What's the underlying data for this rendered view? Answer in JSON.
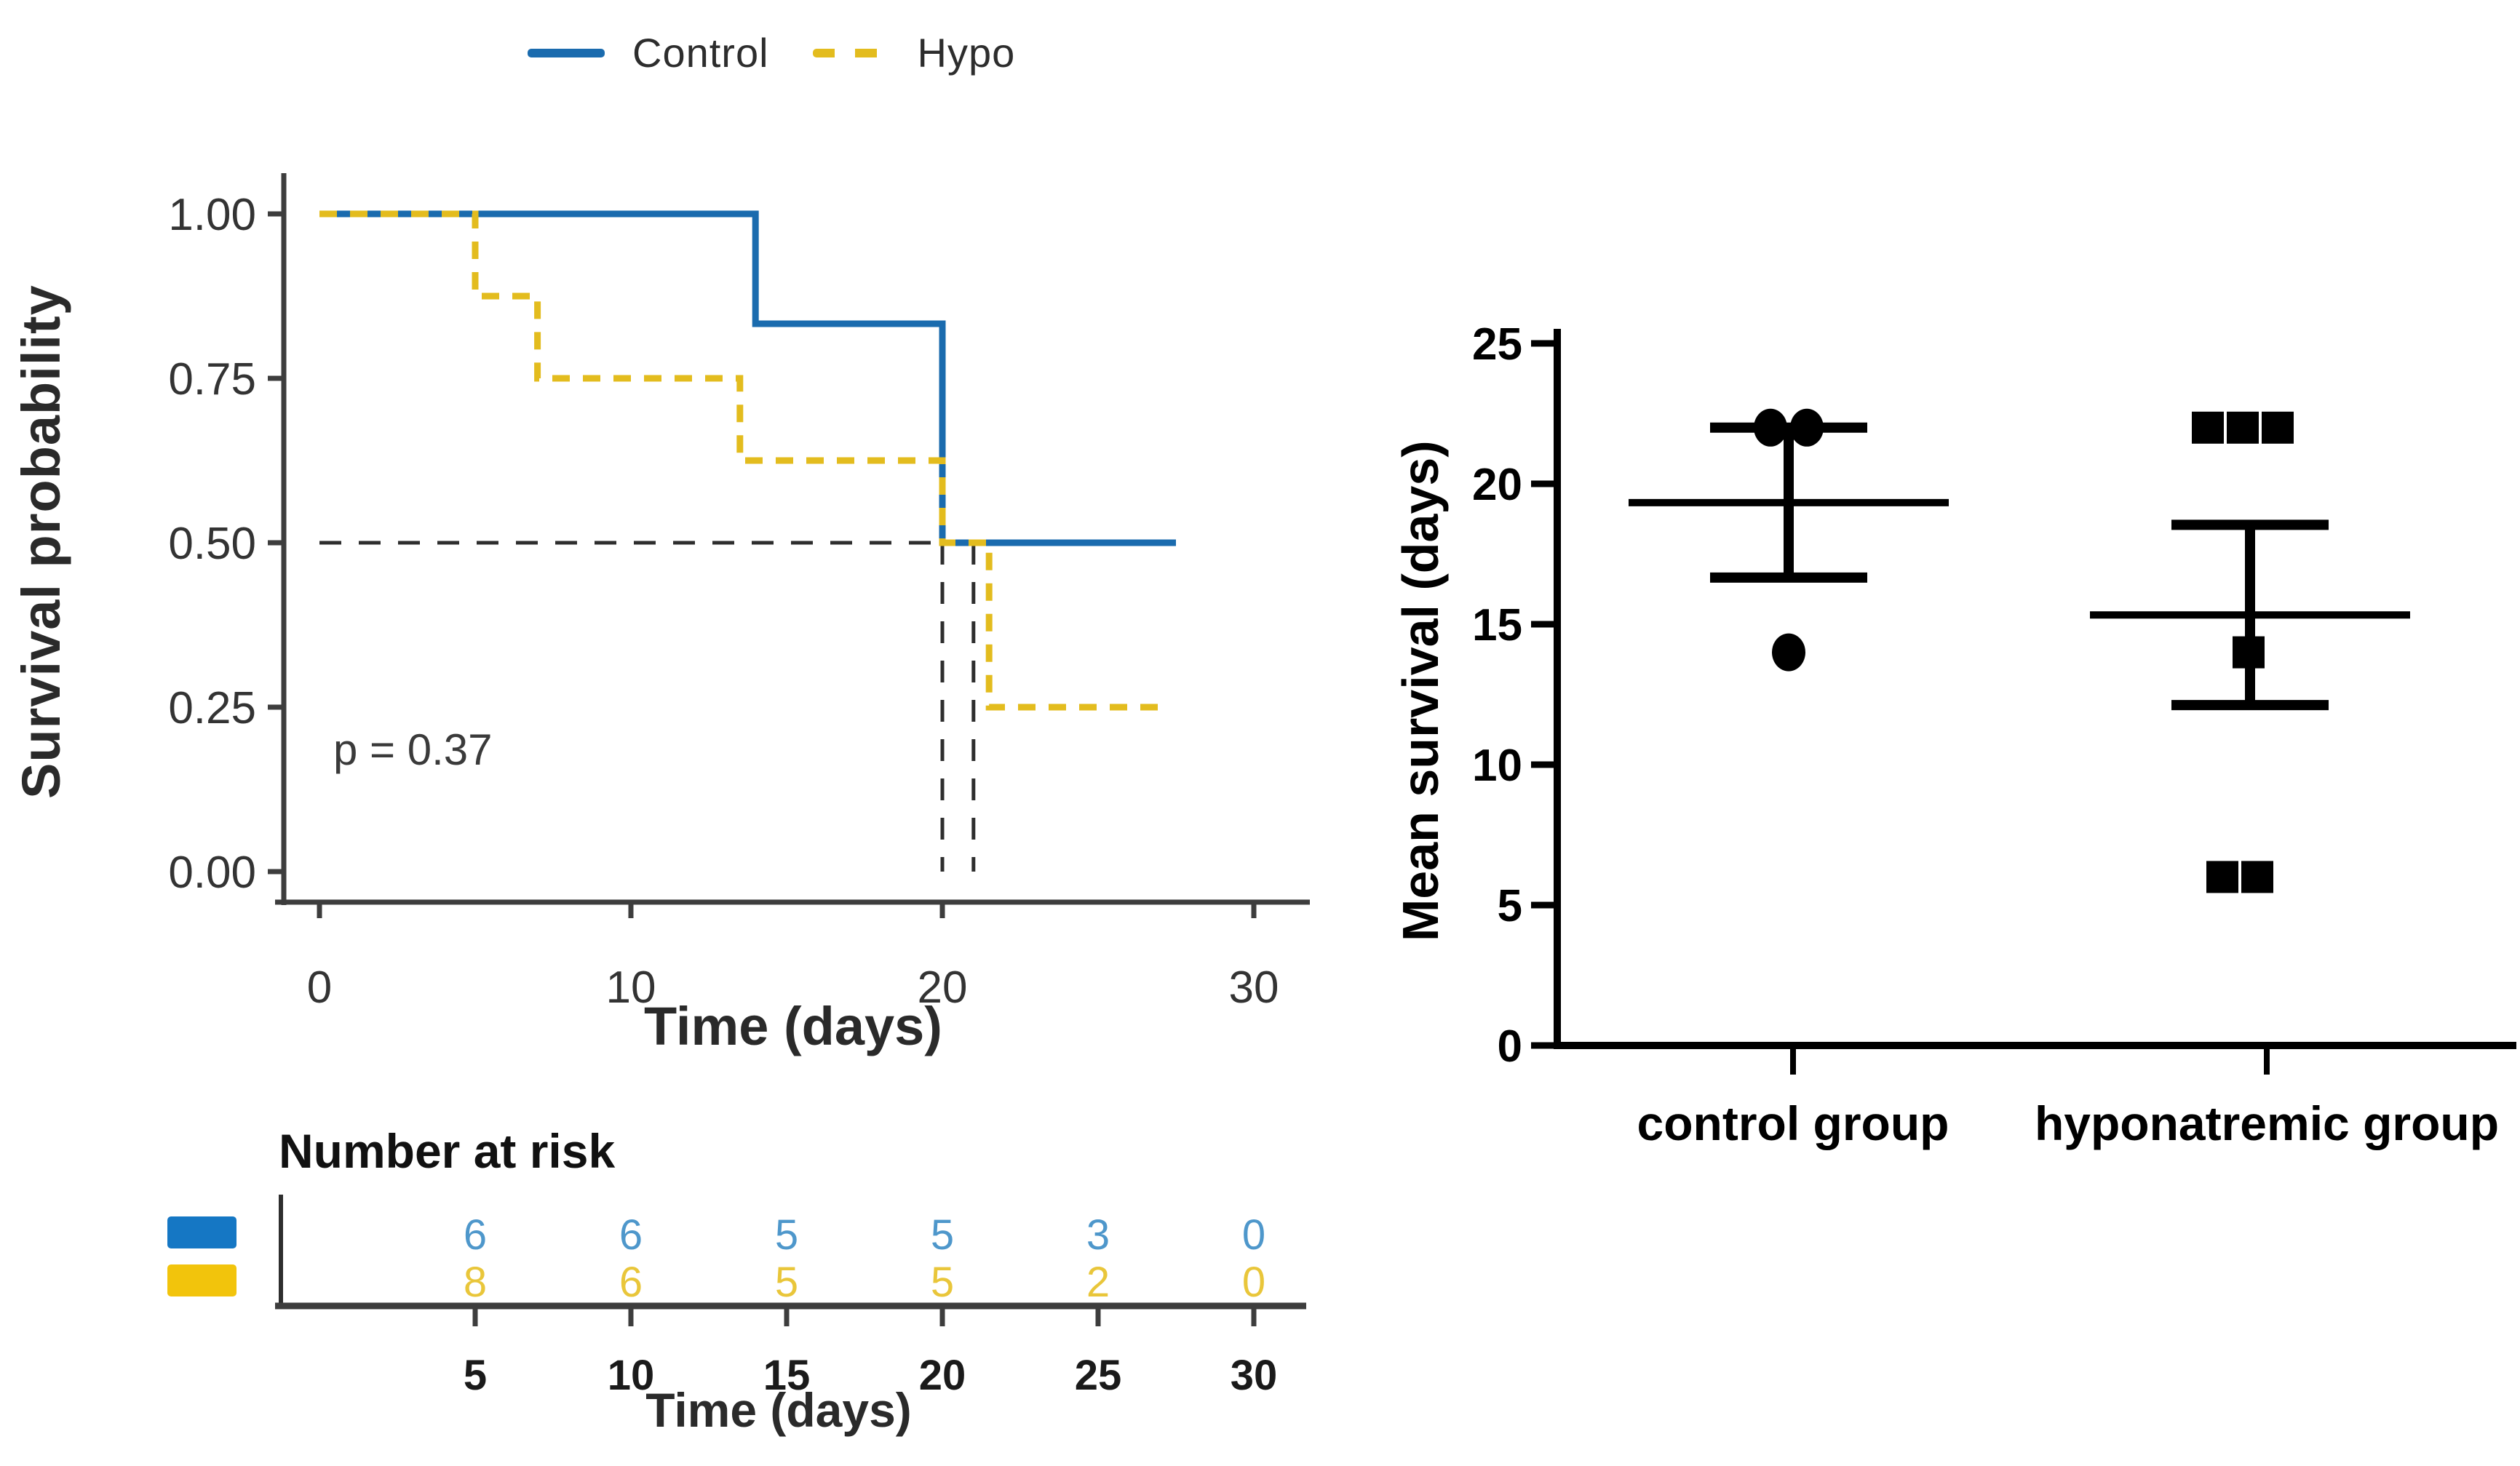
{
  "figure": {
    "type": "two-panel survival analysis figure",
    "background": "#ffffff",
    "legend": {
      "items": [
        {
          "label": "Control",
          "color": "#1a6bae",
          "style": "solid"
        },
        {
          "label": "Hypo",
          "color": "#e3bc1e",
          "style": "dashed"
        }
      ]
    }
  },
  "chart_data": [
    {
      "type": "line",
      "subtype": "kaplan-meier-step",
      "title": "",
      "xlabel": "Time (days)",
      "ylabel": "Survival probability",
      "p_value_label": "p = 0.37",
      "xlim": [
        0,
        31
      ],
      "ylim": [
        0,
        1
      ],
      "xticks": [
        0,
        10,
        20,
        30
      ],
      "xtick_labels": [
        "0",
        "10",
        "20",
        "30"
      ],
      "yticks": [
        1.0,
        0.75,
        0.5,
        0.25,
        0.0
      ],
      "ytick_labels": [
        "1.00",
        "0.75",
        "0.50",
        "0.25",
        "0.00"
      ],
      "grid": false,
      "legend_position": "top",
      "series": [
        {
          "name": "Control",
          "color": "#1a6bae",
          "style": "solid",
          "steps": [
            [
              0,
              1.0
            ],
            [
              14,
              1.0
            ],
            [
              14,
              0.833
            ],
            [
              20,
              0.833
            ],
            [
              20,
              0.5
            ],
            [
              27.5,
              0.5
            ]
          ]
        },
        {
          "name": "Hypo",
          "color": "#e3bc1e",
          "style": "dashed",
          "steps": [
            [
              0,
              1.0
            ],
            [
              5,
              1.0
            ],
            [
              5,
              0.875
            ],
            [
              7,
              0.875
            ],
            [
              7,
              0.75
            ],
            [
              13.5,
              0.75
            ],
            [
              13.5,
              0.625
            ],
            [
              20,
              0.625
            ],
            [
              20,
              0.5
            ],
            [
              21.5,
              0.5
            ],
            [
              21.5,
              0.25
            ],
            [
              27,
              0.25
            ]
          ]
        }
      ],
      "median_guides": {
        "horizontal_at_probability": 0.5,
        "horizontal_span_days": [
          0,
          20
        ],
        "vertical_at_days": [
          20,
          21
        ],
        "color": "#2e2e2e"
      },
      "risk_table": {
        "title": "Number at risk",
        "xlabel": "Time (days)",
        "times": [
          5,
          10,
          15,
          20,
          25,
          30
        ],
        "time_labels": [
          "5",
          "10",
          "15",
          "20",
          "25",
          "30"
        ],
        "rows": [
          {
            "name": "Control",
            "swatch_color": "#1577c4",
            "number_color": "#4e97cb",
            "counts": [
              "6",
              "6",
              "5",
              "5",
              "3",
              "0"
            ]
          },
          {
            "name": "Hypo",
            "swatch_color": "#f2c40c",
            "number_color": "#e9c63a",
            "counts": [
              "8",
              "6",
              "5",
              "5",
              "2",
              "0"
            ]
          }
        ]
      }
    },
    {
      "type": "scatter",
      "subtype": "column-scatter-with-mean-sem",
      "title": "",
      "xlabel": "",
      "ylabel": "Mean survival (days)",
      "ylim": [
        0,
        25
      ],
      "yticks": [
        0,
        5,
        10,
        15,
        20,
        25
      ],
      "ytick_labels": [
        "0",
        "5",
        "10",
        "15",
        "20",
        "25"
      ],
      "grid": false,
      "marker_color": "#000000",
      "groups": [
        {
          "label": "control group",
          "marker": "circle",
          "points": [
            22,
            22,
            14
          ],
          "mean": 19.33,
          "sem": 2.67
        },
        {
          "label": "hyponatremic group",
          "marker": "square",
          "points": [
            22,
            22,
            22,
            14,
            6,
            6
          ],
          "mean": 15.33,
          "sem": 3.21
        }
      ]
    }
  ]
}
